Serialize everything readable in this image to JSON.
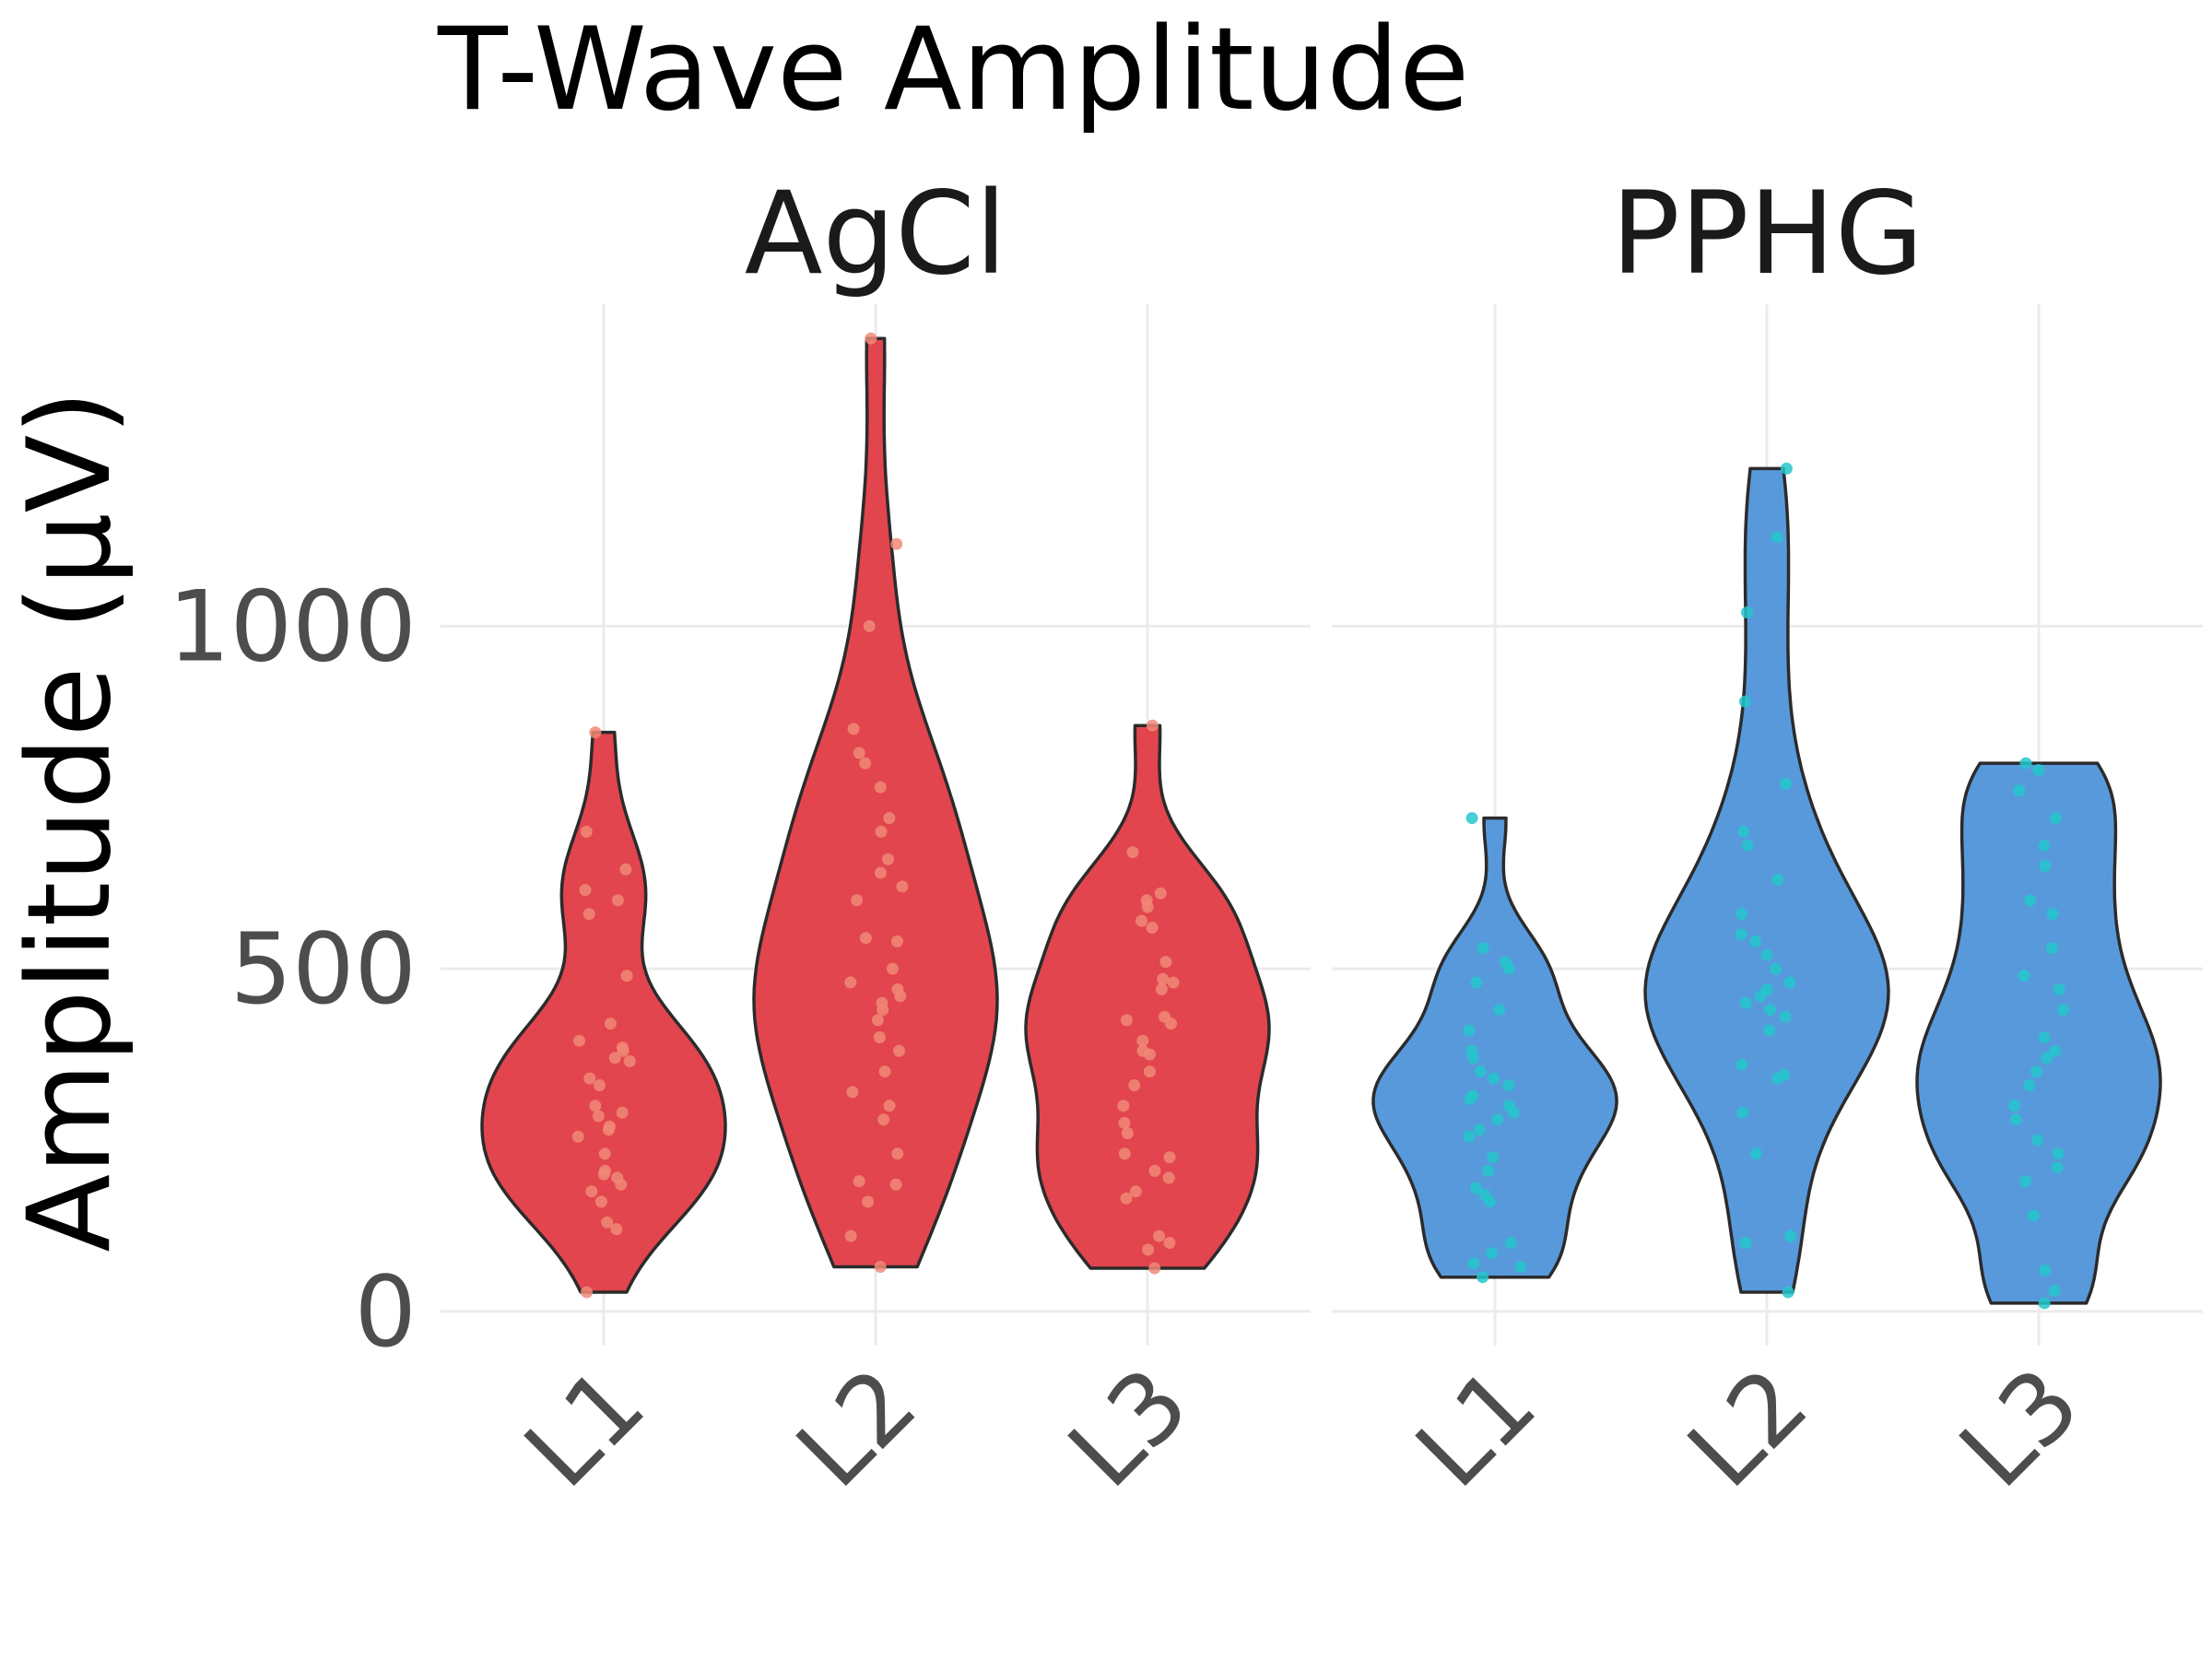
{
  "chart_data": {
    "type": "violin",
    "title": "T-Wave Amplitude",
    "ylabel": "Amplitude (µV)",
    "xlabel": "",
    "ylim": [
      -50,
      1470
    ],
    "yticks": [
      0,
      500,
      1000
    ],
    "categories": [
      "L1",
      "L2",
      "L3"
    ],
    "grid": true,
    "legend": "none",
    "facets": [
      {
        "label": "AgCl",
        "fill_color": "#e0353f",
        "point_color": "#f08877",
        "groups": [
          {
            "category": "L1",
            "min": 28,
            "max": 845,
            "points": [
              28,
              120,
              130,
              160,
              175,
              185,
              195,
              200,
              205,
              230,
              255,
              265,
              270,
              285,
              290,
              300,
              330,
              340,
              365,
              370,
              380,
              385,
              395,
              420,
              490,
              580,
              600,
              615,
              645,
              700,
              845
            ]
          },
          {
            "category": "L2",
            "min": 65,
            "max": 1420,
            "points": [
              65,
              110,
              160,
              185,
              190,
              230,
              280,
              300,
              320,
              350,
              380,
              400,
              425,
              440,
              450,
              460,
              470,
              480,
              500,
              540,
              545,
              600,
              620,
              640,
              660,
              700,
              720,
              765,
              800,
              815,
              850,
              1000,
              1120,
              1420
            ]
          },
          {
            "category": "L3",
            "min": 63,
            "max": 855,
            "points": [
              63,
              90,
              100,
              110,
              165,
              175,
              195,
              205,
              225,
              230,
              260,
              275,
              300,
              330,
              350,
              375,
              380,
              395,
              420,
              425,
              430,
              470,
              480,
              485,
              510,
              560,
              570,
              590,
              600,
              610,
              670,
              855
            ]
          }
        ]
      },
      {
        "label": "PPHG",
        "fill_color": "#4a90d9",
        "point_color": "#25c6cb",
        "groups": [
          {
            "category": "L1",
            "min": 50,
            "max": 720,
            "points": [
              50,
              65,
              70,
              85,
              100,
              160,
              170,
              180,
              205,
              225,
              255,
              265,
              280,
              290,
              300,
              310,
              315,
              330,
              340,
              350,
              370,
              380,
              410,
              440,
              480,
              500,
              510,
              530,
              720
            ]
          },
          {
            "category": "L2",
            "min": 28,
            "max": 1230,
            "points": [
              28,
              100,
              110,
              230,
              290,
              340,
              345,
              360,
              410,
              430,
              440,
              450,
              460,
              470,
              480,
              500,
              520,
              540,
              550,
              580,
              630,
              680,
              700,
              770,
              890,
              1020,
              1130,
              1230
            ]
          },
          {
            "category": "L3",
            "min": 12,
            "max": 800,
            "points": [
              12,
              30,
              60,
              140,
              190,
              210,
              230,
              250,
              280,
              300,
              330,
              350,
              370,
              380,
              400,
              440,
              470,
              490,
              530,
              580,
              600,
              650,
              680,
              720,
              760,
              790,
              800
            ]
          }
        ]
      }
    ]
  }
}
